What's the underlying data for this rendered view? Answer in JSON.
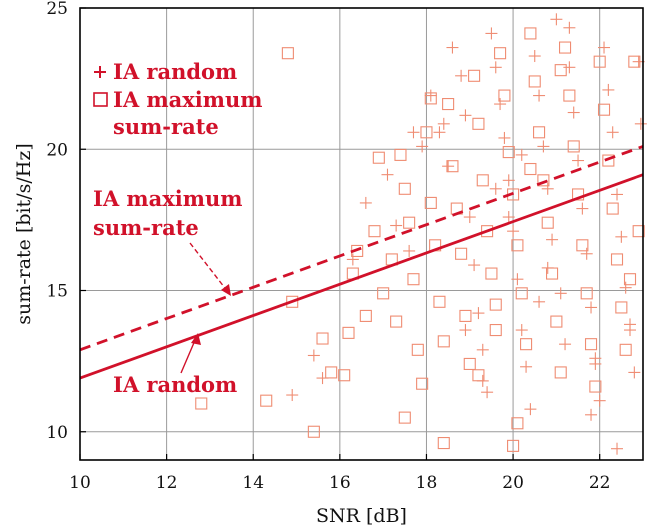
{
  "chart_data": {
    "type": "scatter",
    "xlabel": "SNR [dB]",
    "ylabel": "sum-rate [bit/s/Hz]",
    "xlim": [
      10,
      23
    ],
    "ylim": [
      9,
      25
    ],
    "xticks": [
      10,
      12,
      14,
      16,
      18,
      20,
      22
    ],
    "yticks": [
      10,
      15,
      20,
      25
    ],
    "grid": true,
    "colors": {
      "scatter": "#ef8c72",
      "line": "#d1112a"
    },
    "lines": [
      {
        "name": "IA maximum sum-rate",
        "style": "dashed",
        "x": [
          10,
          23
        ],
        "y": [
          12.9,
          20.1
        ]
      },
      {
        "name": "IA random",
        "style": "solid",
        "x": [
          10,
          23
        ],
        "y": [
          11.9,
          19.1
        ]
      }
    ],
    "legend": {
      "placement": "top-left",
      "entries": [
        {
          "marker": "+",
          "lines": [
            "IA random"
          ]
        },
        {
          "marker": "□",
          "lines": [
            "IA maximum",
            "sum-rate"
          ]
        }
      ]
    },
    "annotations": [
      {
        "lines": [
          "IA maximum",
          "sum-rate"
        ],
        "target": "dashed"
      },
      {
        "lines": [
          "IA random"
        ],
        "target": "solid"
      }
    ],
    "series": [
      {
        "name": "IA random",
        "marker": "plus",
        "points": [
          [
            14.9,
            11.3
          ],
          [
            15.4,
            12.7
          ],
          [
            15.6,
            11.9
          ],
          [
            16.3,
            16.1
          ],
          [
            16.6,
            18.1
          ],
          [
            17.1,
            19.1
          ],
          [
            17.3,
            17.3
          ],
          [
            17.6,
            16.4
          ],
          [
            17.9,
            20.1
          ],
          [
            18.1,
            21.9
          ],
          [
            18.3,
            20.6
          ],
          [
            18.5,
            19.4
          ],
          [
            18.6,
            23.6
          ],
          [
            18.8,
            22.6
          ],
          [
            18.9,
            21.2
          ],
          [
            19.0,
            17.6
          ],
          [
            19.1,
            15.9
          ],
          [
            19.2,
            14.2
          ],
          [
            19.3,
            12.9
          ],
          [
            19.4,
            11.4
          ],
          [
            19.5,
            24.1
          ],
          [
            19.6,
            22.9
          ],
          [
            19.7,
            21.6
          ],
          [
            19.8,
            20.4
          ],
          [
            19.9,
            18.9
          ],
          [
            20.0,
            17.1
          ],
          [
            20.1,
            15.4
          ],
          [
            20.2,
            13.6
          ],
          [
            20.3,
            12.3
          ],
          [
            20.4,
            10.8
          ],
          [
            20.5,
            23.3
          ],
          [
            20.6,
            21.9
          ],
          [
            20.7,
            20.1
          ],
          [
            20.8,
            18.6
          ],
          [
            20.9,
            16.8
          ],
          [
            21.0,
            24.6
          ],
          [
            21.1,
            14.9
          ],
          [
            21.2,
            13.1
          ],
          [
            21.3,
            22.9
          ],
          [
            21.4,
            21.3
          ],
          [
            21.5,
            19.6
          ],
          [
            21.6,
            17.9
          ],
          [
            21.7,
            16.3
          ],
          [
            21.8,
            14.4
          ],
          [
            21.9,
            12.6
          ],
          [
            22.0,
            11.1
          ],
          [
            22.1,
            23.6
          ],
          [
            22.2,
            22.1
          ],
          [
            22.3,
            20.6
          ],
          [
            22.4,
            18.4
          ],
          [
            22.5,
            16.9
          ],
          [
            22.6,
            15.1
          ],
          [
            22.7,
            13.6
          ],
          [
            22.8,
            12.1
          ],
          [
            22.9,
            23.1
          ],
          [
            22.95,
            20.9
          ],
          [
            21.3,
            24.3
          ],
          [
            20.2,
            19.8
          ],
          [
            19.6,
            18.6
          ],
          [
            18.4,
            20.9
          ],
          [
            21.8,
            10.6
          ],
          [
            22.4,
            9.4
          ],
          [
            19.9,
            17.6
          ],
          [
            20.8,
            15.8
          ],
          [
            17.7,
            20.6
          ],
          [
            18.9,
            13.6
          ],
          [
            21.9,
            12.4
          ],
          [
            22.7,
            13.8
          ],
          [
            19.3,
            11.8
          ],
          [
            20.6,
            14.6
          ]
        ]
      },
      {
        "name": "IA maximum sum-rate",
        "marker": "square",
        "points": [
          [
            12.8,
            11.0
          ],
          [
            14.3,
            11.1
          ],
          [
            14.8,
            23.4
          ],
          [
            14.9,
            14.6
          ],
          [
            15.4,
            10.0
          ],
          [
            15.6,
            13.3
          ],
          [
            15.8,
            12.1
          ],
          [
            16.1,
            12.0
          ],
          [
            16.3,
            15.6
          ],
          [
            16.4,
            16.4
          ],
          [
            16.6,
            14.1
          ],
          [
            16.8,
            17.1
          ],
          [
            16.9,
            19.7
          ],
          [
            17.0,
            14.9
          ],
          [
            17.2,
            16.1
          ],
          [
            17.3,
            13.9
          ],
          [
            17.4,
            19.8
          ],
          [
            17.5,
            18.6
          ],
          [
            17.6,
            17.4
          ],
          [
            17.7,
            15.4
          ],
          [
            17.8,
            12.9
          ],
          [
            17.9,
            11.7
          ],
          [
            18.0,
            20.6
          ],
          [
            18.1,
            18.1
          ],
          [
            18.2,
            16.6
          ],
          [
            18.3,
            14.6
          ],
          [
            18.4,
            13.2
          ],
          [
            18.5,
            21.6
          ],
          [
            18.6,
            19.4
          ],
          [
            18.7,
            17.9
          ],
          [
            18.8,
            16.3
          ],
          [
            18.9,
            14.1
          ],
          [
            19.0,
            12.4
          ],
          [
            19.1,
            22.6
          ],
          [
            19.2,
            20.9
          ],
          [
            19.3,
            18.9
          ],
          [
            19.4,
            17.1
          ],
          [
            19.5,
            15.6
          ],
          [
            19.6,
            13.6
          ],
          [
            19.7,
            23.4
          ],
          [
            19.8,
            21.9
          ],
          [
            19.9,
            19.9
          ],
          [
            20.0,
            18.4
          ],
          [
            20.1,
            16.6
          ],
          [
            20.2,
            14.9
          ],
          [
            20.3,
            13.1
          ],
          [
            20.4,
            24.1
          ],
          [
            20.5,
            22.4
          ],
          [
            20.6,
            20.6
          ],
          [
            20.7,
            18.9
          ],
          [
            20.8,
            17.4
          ],
          [
            20.9,
            15.6
          ],
          [
            21.0,
            13.9
          ],
          [
            21.1,
            12.1
          ],
          [
            21.2,
            23.6
          ],
          [
            21.3,
            21.9
          ],
          [
            21.4,
            20.1
          ],
          [
            21.5,
            18.4
          ],
          [
            21.6,
            16.6
          ],
          [
            21.7,
            14.9
          ],
          [
            21.8,
            13.1
          ],
          [
            21.9,
            11.6
          ],
          [
            22.0,
            23.1
          ],
          [
            22.1,
            21.4
          ],
          [
            22.2,
            19.6
          ],
          [
            22.3,
            17.9
          ],
          [
            22.4,
            16.1
          ],
          [
            22.5,
            14.4
          ],
          [
            22.6,
            12.9
          ],
          [
            22.7,
            15.4
          ],
          [
            22.8,
            23.1
          ],
          [
            22.9,
            17.1
          ],
          [
            19.2,
            12.0
          ],
          [
            20.1,
            10.3
          ],
          [
            18.4,
            9.6
          ],
          [
            20.0,
            9.5
          ],
          [
            17.5,
            10.5
          ],
          [
            18.1,
            21.8
          ],
          [
            21.1,
            22.8
          ],
          [
            16.2,
            13.5
          ],
          [
            19.6,
            14.5
          ],
          [
            20.4,
            19.3
          ]
        ]
      }
    ]
  }
}
